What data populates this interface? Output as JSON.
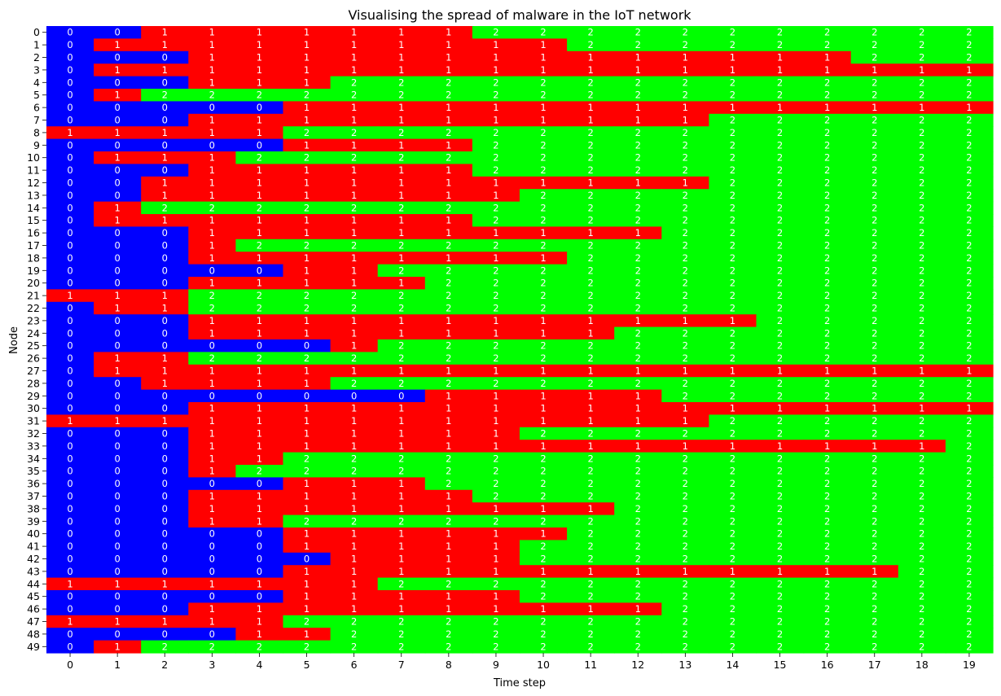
{
  "chart_data": {
    "type": "heatmap",
    "title": "Visualising the spread of malware in the IoT network",
    "xlabel": "Time step",
    "ylabel": "Node",
    "x": [
      "0",
      "1",
      "2",
      "3",
      "4",
      "5",
      "6",
      "7",
      "8",
      "9",
      "10",
      "11",
      "12",
      "13",
      "14",
      "15",
      "16",
      "17",
      "18",
      "19"
    ],
    "y": [
      "0",
      "1",
      "2",
      "3",
      "4",
      "5",
      "6",
      "7",
      "8",
      "9",
      "10",
      "11",
      "12",
      "13",
      "14",
      "15",
      "16",
      "17",
      "18",
      "19",
      "20",
      "21",
      "22",
      "23",
      "24",
      "25",
      "26",
      "27",
      "28",
      "29",
      "30",
      "31",
      "32",
      "33",
      "34",
      "35",
      "36",
      "37",
      "38",
      "39",
      "40",
      "41",
      "42",
      "43",
      "44",
      "45",
      "46",
      "47",
      "48",
      "49"
    ],
    "colors": {
      "0": "#0000ff",
      "1": "#ff0000",
      "2": "#00ff00",
      "annotation": "#ffffff"
    },
    "values": [
      [
        0,
        0,
        1,
        1,
        1,
        1,
        1,
        1,
        1,
        2,
        2,
        2,
        2,
        2,
        2,
        2,
        2,
        2,
        2,
        2
      ],
      [
        0,
        1,
        1,
        1,
        1,
        1,
        1,
        1,
        1,
        1,
        1,
        2,
        2,
        2,
        2,
        2,
        2,
        2,
        2,
        2
      ],
      [
        0,
        0,
        0,
        1,
        1,
        1,
        1,
        1,
        1,
        1,
        1,
        1,
        1,
        1,
        1,
        1,
        1,
        2,
        2,
        2
      ],
      [
        0,
        1,
        1,
        1,
        1,
        1,
        1,
        1,
        1,
        1,
        1,
        1,
        1,
        1,
        1,
        1,
        1,
        1,
        1,
        1
      ],
      [
        0,
        0,
        0,
        1,
        1,
        1,
        2,
        2,
        2,
        2,
        2,
        2,
        2,
        2,
        2,
        2,
        2,
        2,
        2,
        2
      ],
      [
        0,
        1,
        2,
        2,
        2,
        2,
        2,
        2,
        2,
        2,
        2,
        2,
        2,
        2,
        2,
        2,
        2,
        2,
        2,
        2
      ],
      [
        0,
        0,
        0,
        0,
        0,
        1,
        1,
        1,
        1,
        1,
        1,
        1,
        1,
        1,
        1,
        1,
        1,
        1,
        1,
        1
      ],
      [
        0,
        0,
        0,
        1,
        1,
        1,
        1,
        1,
        1,
        1,
        1,
        1,
        1,
        1,
        2,
        2,
        2,
        2,
        2,
        2
      ],
      [
        1,
        1,
        1,
        1,
        1,
        2,
        2,
        2,
        2,
        2,
        2,
        2,
        2,
        2,
        2,
        2,
        2,
        2,
        2,
        2
      ],
      [
        0,
        0,
        0,
        0,
        0,
        1,
        1,
        1,
        1,
        2,
        2,
        2,
        2,
        2,
        2,
        2,
        2,
        2,
        2,
        2
      ],
      [
        0,
        1,
        1,
        1,
        2,
        2,
        2,
        2,
        2,
        2,
        2,
        2,
        2,
        2,
        2,
        2,
        2,
        2,
        2,
        2
      ],
      [
        0,
        0,
        0,
        1,
        1,
        1,
        1,
        1,
        1,
        2,
        2,
        2,
        2,
        2,
        2,
        2,
        2,
        2,
        2,
        2
      ],
      [
        0,
        0,
        1,
        1,
        1,
        1,
        1,
        1,
        1,
        1,
        1,
        1,
        1,
        1,
        2,
        2,
        2,
        2,
        2,
        2
      ],
      [
        0,
        0,
        1,
        1,
        1,
        1,
        1,
        1,
        1,
        1,
        2,
        2,
        2,
        2,
        2,
        2,
        2,
        2,
        2,
        2
      ],
      [
        0,
        1,
        2,
        2,
        2,
        2,
        2,
        2,
        2,
        2,
        2,
        2,
        2,
        2,
        2,
        2,
        2,
        2,
        2,
        2
      ],
      [
        0,
        1,
        1,
        1,
        1,
        1,
        1,
        1,
        1,
        2,
        2,
        2,
        2,
        2,
        2,
        2,
        2,
        2,
        2,
        2
      ],
      [
        0,
        0,
        0,
        1,
        1,
        1,
        1,
        1,
        1,
        1,
        1,
        1,
        1,
        2,
        2,
        2,
        2,
        2,
        2,
        2
      ],
      [
        0,
        0,
        0,
        1,
        2,
        2,
        2,
        2,
        2,
        2,
        2,
        2,
        2,
        2,
        2,
        2,
        2,
        2,
        2,
        2
      ],
      [
        0,
        0,
        0,
        1,
        1,
        1,
        1,
        1,
        1,
        1,
        1,
        2,
        2,
        2,
        2,
        2,
        2,
        2,
        2,
        2
      ],
      [
        0,
        0,
        0,
        0,
        0,
        1,
        1,
        2,
        2,
        2,
        2,
        2,
        2,
        2,
        2,
        2,
        2,
        2,
        2,
        2
      ],
      [
        0,
        0,
        0,
        1,
        1,
        1,
        1,
        1,
        2,
        2,
        2,
        2,
        2,
        2,
        2,
        2,
        2,
        2,
        2,
        2
      ],
      [
        1,
        1,
        1,
        2,
        2,
        2,
        2,
        2,
        2,
        2,
        2,
        2,
        2,
        2,
        2,
        2,
        2,
        2,
        2,
        2
      ],
      [
        0,
        1,
        1,
        2,
        2,
        2,
        2,
        2,
        2,
        2,
        2,
        2,
        2,
        2,
        2,
        2,
        2,
        2,
        2,
        2
      ],
      [
        0,
        0,
        0,
        1,
        1,
        1,
        1,
        1,
        1,
        1,
        1,
        1,
        1,
        1,
        1,
        2,
        2,
        2,
        2,
        2
      ],
      [
        0,
        0,
        0,
        1,
        1,
        1,
        1,
        1,
        1,
        1,
        1,
        1,
        2,
        2,
        2,
        2,
        2,
        2,
        2,
        2
      ],
      [
        0,
        0,
        0,
        0,
        0,
        0,
        1,
        2,
        2,
        2,
        2,
        2,
        2,
        2,
        2,
        2,
        2,
        2,
        2,
        2
      ],
      [
        0,
        1,
        1,
        2,
        2,
        2,
        2,
        2,
        2,
        2,
        2,
        2,
        2,
        2,
        2,
        2,
        2,
        2,
        2,
        2
      ],
      [
        0,
        1,
        1,
        1,
        1,
        1,
        1,
        1,
        1,
        1,
        1,
        1,
        1,
        1,
        1,
        1,
        1,
        1,
        1,
        1
      ],
      [
        0,
        0,
        1,
        1,
        1,
        1,
        2,
        2,
        2,
        2,
        2,
        2,
        2,
        2,
        2,
        2,
        2,
        2,
        2,
        2
      ],
      [
        0,
        0,
        0,
        0,
        0,
        0,
        0,
        0,
        1,
        1,
        1,
        1,
        1,
        2,
        2,
        2,
        2,
        2,
        2,
        2
      ],
      [
        0,
        0,
        0,
        1,
        1,
        1,
        1,
        1,
        1,
        1,
        1,
        1,
        1,
        1,
        1,
        1,
        1,
        1,
        1,
        1
      ],
      [
        1,
        1,
        1,
        1,
        1,
        1,
        1,
        1,
        1,
        1,
        1,
        1,
        1,
        1,
        2,
        2,
        2,
        2,
        2,
        2
      ],
      [
        0,
        0,
        0,
        1,
        1,
        1,
        1,
        1,
        1,
        1,
        2,
        2,
        2,
        2,
        2,
        2,
        2,
        2,
        2,
        2
      ],
      [
        0,
        0,
        0,
        1,
        1,
        1,
        1,
        1,
        1,
        1,
        1,
        1,
        1,
        1,
        1,
        1,
        1,
        1,
        1,
        2
      ],
      [
        0,
        0,
        0,
        1,
        1,
        2,
        2,
        2,
        2,
        2,
        2,
        2,
        2,
        2,
        2,
        2,
        2,
        2,
        2,
        2
      ],
      [
        0,
        0,
        0,
        1,
        2,
        2,
        2,
        2,
        2,
        2,
        2,
        2,
        2,
        2,
        2,
        2,
        2,
        2,
        2,
        2
      ],
      [
        0,
        0,
        0,
        0,
        0,
        1,
        1,
        1,
        2,
        2,
        2,
        2,
        2,
        2,
        2,
        2,
        2,
        2,
        2,
        2
      ],
      [
        0,
        0,
        0,
        1,
        1,
        1,
        1,
        1,
        1,
        2,
        2,
        2,
        2,
        2,
        2,
        2,
        2,
        2,
        2,
        2
      ],
      [
        0,
        0,
        0,
        1,
        1,
        1,
        1,
        1,
        1,
        1,
        1,
        1,
        2,
        2,
        2,
        2,
        2,
        2,
        2,
        2
      ],
      [
        0,
        0,
        0,
        1,
        1,
        2,
        2,
        2,
        2,
        2,
        2,
        2,
        2,
        2,
        2,
        2,
        2,
        2,
        2,
        2
      ],
      [
        0,
        0,
        0,
        0,
        0,
        1,
        1,
        1,
        1,
        1,
        1,
        2,
        2,
        2,
        2,
        2,
        2,
        2,
        2,
        2
      ],
      [
        0,
        0,
        0,
        0,
        0,
        1,
        1,
        1,
        1,
        1,
        2,
        2,
        2,
        2,
        2,
        2,
        2,
        2,
        2,
        2
      ],
      [
        0,
        0,
        0,
        0,
        0,
        0,
        1,
        1,
        1,
        1,
        2,
        2,
        2,
        2,
        2,
        2,
        2,
        2,
        2,
        2
      ],
      [
        0,
        0,
        0,
        0,
        0,
        1,
        1,
        1,
        1,
        1,
        1,
        1,
        1,
        1,
        1,
        1,
        1,
        1,
        2,
        2
      ],
      [
        1,
        1,
        1,
        1,
        1,
        1,
        1,
        2,
        2,
        2,
        2,
        2,
        2,
        2,
        2,
        2,
        2,
        2,
        2,
        2
      ],
      [
        0,
        0,
        0,
        0,
        0,
        1,
        1,
        1,
        1,
        1,
        2,
        2,
        2,
        2,
        2,
        2,
        2,
        2,
        2,
        2
      ],
      [
        0,
        0,
        0,
        1,
        1,
        1,
        1,
        1,
        1,
        1,
        1,
        1,
        1,
        2,
        2,
        2,
        2,
        2,
        2,
        2
      ],
      [
        1,
        1,
        1,
        1,
        1,
        2,
        2,
        2,
        2,
        2,
        2,
        2,
        2,
        2,
        2,
        2,
        2,
        2,
        2,
        2
      ],
      [
        0,
        0,
        0,
        0,
        1,
        1,
        2,
        2,
        2,
        2,
        2,
        2,
        2,
        2,
        2,
        2,
        2,
        2,
        2,
        2
      ],
      [
        0,
        1,
        2,
        2,
        2,
        2,
        2,
        2,
        2,
        2,
        2,
        2,
        2,
        2,
        2,
        2,
        2,
        2,
        2,
        2
      ]
    ]
  }
}
